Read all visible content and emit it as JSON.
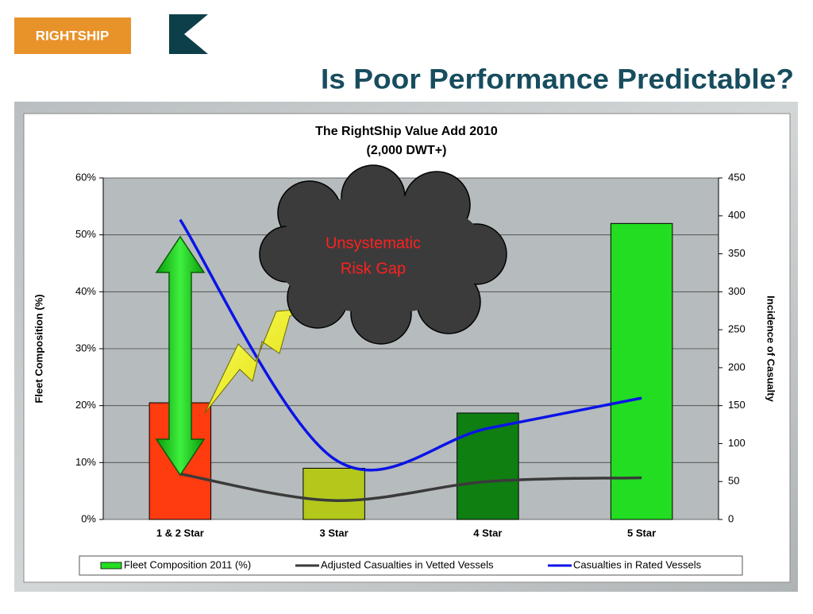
{
  "header": {
    "logo": "RIGHTSHIP",
    "title": "Is Poor Performance Predictable?"
  },
  "chart_data": {
    "type": "combo",
    "title": "The RightShip Value Add 2010",
    "subtitle": "(2,000 DWT+)",
    "ylabel": "Fleet Composition (%)",
    "y2label": "Incidence of Casualty",
    "annotation": [
      "Unsystematic",
      "Risk Gap"
    ],
    "categories": [
      "1 & 2 Star",
      "3 Star",
      "4 Star",
      "5 Star"
    ],
    "series": [
      {
        "name": "Fleet Composition 2011 (%)",
        "type": "bar",
        "axis": "y",
        "color": "#22dd22",
        "colors": [
          "#ff3b10",
          "#b4c81c",
          "#0f7f12",
          "#22dd22"
        ],
        "values": [
          20.5,
          9,
          18.7,
          52
        ]
      },
      {
        "name": "Adjusted Casualties in Vetted Vessels",
        "type": "line",
        "axis": "y2",
        "color": "#3a3a3a",
        "values": [
          60,
          25,
          50,
          55
        ]
      },
      {
        "name": "Casualties in Rated Vessels",
        "type": "line",
        "axis": "y2",
        "color": "#0a14e6",
        "values": [
          395,
          80,
          120,
          160
        ]
      }
    ],
    "ylim": [
      0,
      60
    ],
    "yticks": [
      {
        "value": 0,
        "label": "0%"
      },
      {
        "value": 10,
        "label": "10%"
      },
      {
        "value": 20,
        "label": "20%"
      },
      {
        "value": 30,
        "label": "30%"
      },
      {
        "value": 40,
        "label": "40%"
      },
      {
        "value": 50,
        "label": "50%"
      },
      {
        "value": 60,
        "label": "60%"
      }
    ],
    "y2lim": [
      0,
      450
    ],
    "y2ticks": [
      0,
      50,
      100,
      150,
      200,
      250,
      300,
      350,
      400,
      450
    ],
    "grid": true,
    "legend": "bottom"
  }
}
